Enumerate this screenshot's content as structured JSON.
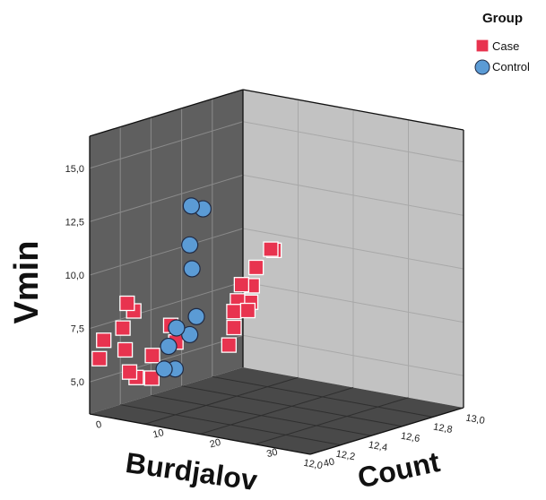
{
  "chart_data": {
    "type": "scatter",
    "projection": "3d",
    "zlabel": "Vmin",
    "xlabel": "Burdjalov",
    "ylabel": "Count",
    "zlim": [
      3.5,
      16.5
    ],
    "xlim": [
      12.0,
      13.0
    ],
    "ylim": [
      0,
      40
    ],
    "z_ticks": [
      "15,0",
      "12,5",
      "10,0",
      "7,5",
      "5,0"
    ],
    "x_ticks": [
      "12,0",
      "12,2",
      "12,4",
      "12,6",
      "12,8",
      "13,0"
    ],
    "y_ticks": [
      "0",
      "10",
      "20",
      "30",
      "40"
    ],
    "legend": {
      "title": "Group",
      "position": "top-right",
      "entries": [
        {
          "label": "Case",
          "marker": "square",
          "color": "#e8334f"
        },
        {
          "label": "Control",
          "marker": "circle",
          "color": "#5b9bd5"
        }
      ]
    },
    "colors": {
      "left_wall": "#5f5f5f",
      "right_wall": "#c2c2c2",
      "floor": "#494949",
      "grid": "#8a8a8a",
      "case_fill": "#e8334f",
      "control_fill": "#5b9bd5"
    },
    "series": [
      {
        "name": "Case",
        "points": [
          {
            "u": 0.56,
            "v": 0.53,
            "z": 11.2
          },
          {
            "u": 0.61,
            "v": 0.55,
            "z": 11.4
          },
          {
            "u": 0.54,
            "v": 0.41,
            "z": 8.5
          },
          {
            "u": 0.63,
            "v": 0.48,
            "z": 9.6
          },
          {
            "u": 0.64,
            "v": 0.42,
            "z": 8.8
          },
          {
            "u": 0.49,
            "v": 0.4,
            "z": 10.0
          },
          {
            "u": 0.47,
            "v": 0.32,
            "z": 9.0
          },
          {
            "u": 0.62,
            "v": 0.39,
            "z": 8.2
          },
          {
            "u": 0.4,
            "v": 0.3,
            "z": 7.6
          },
          {
            "u": 0.49,
            "v": 0.3,
            "z": 7.0
          },
          {
            "u": 0.48,
            "v": 0.27,
            "z": 6.1
          },
          {
            "u": 0.96,
            "v": 0.34,
            "z": 8.2
          },
          {
            "u": 0.97,
            "v": 0.37,
            "z": 7.5
          },
          {
            "u": 0.95,
            "v": 0.25,
            "z": 6.6
          },
          {
            "u": 0.94,
            "v": 0.24,
            "z": 5.5
          },
          {
            "u": 0.97,
            "v": 0.19,
            "z": 5.5
          },
          {
            "u": 0.97,
            "v": 0.16,
            "z": 5.7
          },
          {
            "u": 0.97,
            "v": 0.14,
            "z": 6.7
          },
          {
            "u": 0.97,
            "v": 0.13,
            "z": 7.7
          },
          {
            "u": 1.0,
            "v": 0.2,
            "z": 8.7
          },
          {
            "u": 1.0,
            "v": 0.17,
            "z": 9.0
          },
          {
            "u": 0.98,
            "v": 0.05,
            "z": 7.0
          },
          {
            "u": 0.98,
            "v": 0.03,
            "z": 6.1
          }
        ]
      },
      {
        "name": "Control",
        "points": [
          {
            "u": 0.98,
            "v": 0.5,
            "z": 14.0
          },
          {
            "u": 0.97,
            "v": 0.44,
            "z": 14.0
          },
          {
            "u": 0.98,
            "v": 0.44,
            "z": 12.2
          },
          {
            "u": 0.98,
            "v": 0.45,
            "z": 11.1
          },
          {
            "u": 0.98,
            "v": 0.47,
            "z": 8.9
          },
          {
            "u": 0.98,
            "v": 0.44,
            "z": 8.0
          },
          {
            "u": 0.98,
            "v": 0.38,
            "z": 8.2
          },
          {
            "u": 0.96,
            "v": 0.33,
            "z": 7.2
          },
          {
            "u": 0.96,
            "v": 0.36,
            "z": 6.2
          },
          {
            "u": 0.96,
            "v": 0.31,
            "z": 6.1
          }
        ]
      }
    ]
  }
}
